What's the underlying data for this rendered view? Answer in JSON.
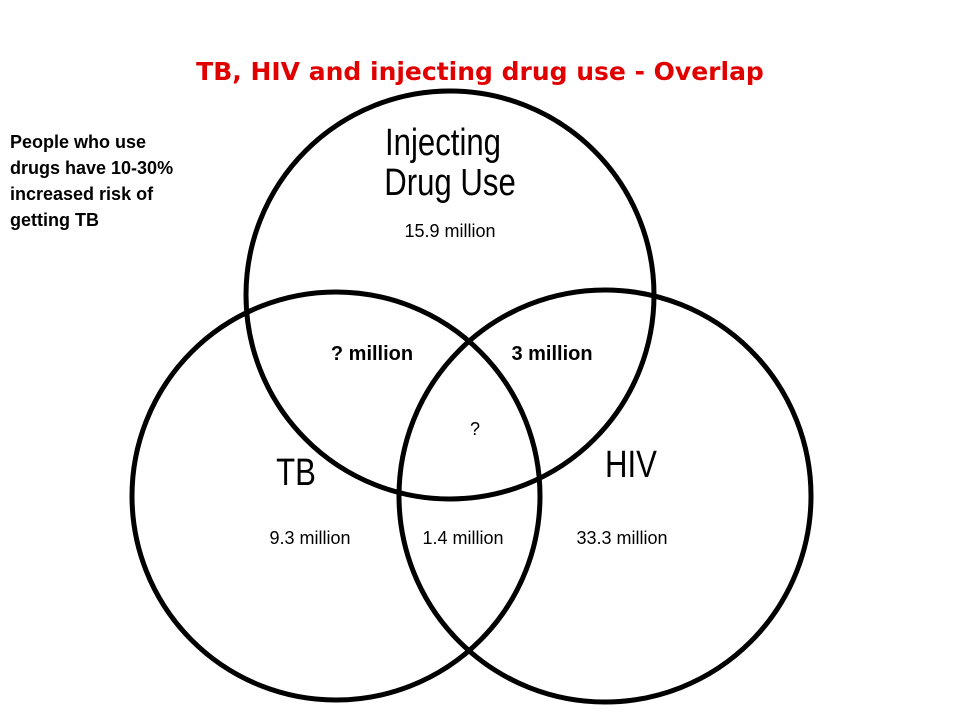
{
  "title": "TB, HIV and injecting drug use - Overlap",
  "note": {
    "lines": [
      "People who use",
      "drugs have 10-30%",
      "increased risk of",
      "getting TB"
    ]
  },
  "sets": {
    "injecting": {
      "label": [
        "Injecting",
        "Drug Use"
      ],
      "value": "15.9 million"
    },
    "tb": {
      "label": "TB",
      "value": "9.3 million"
    },
    "hiv": {
      "label": "HIV",
      "value": "33.3 million"
    }
  },
  "overlaps": {
    "injecting_tb": "? million",
    "injecting_hiv": "3 million",
    "tb_hiv": "1.4 million",
    "all": "?"
  }
}
